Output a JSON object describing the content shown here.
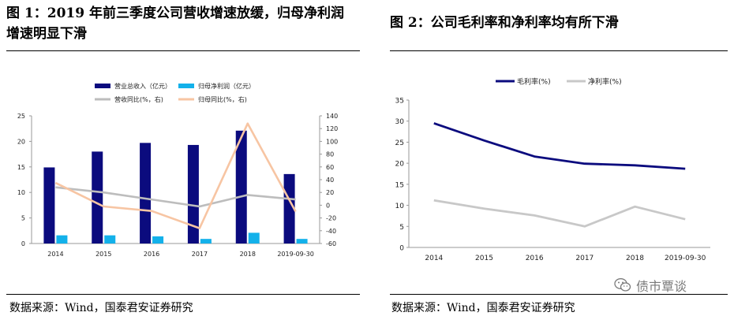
{
  "left_title": "图 1：2019 年前三季度公司营收增速放缓，归母净利润增速明显下滑",
  "right_title": "图 2：公司毛利率和净利率均有所下滑",
  "left_source": "数据来源：Wind，国泰君安证券研究",
  "right_source": "数据来源：Wind，国泰君安证券研究",
  "watermark": {
    "icon": "wechat-icon",
    "text": "债市覃谈"
  },
  "chart_data": [
    {
      "type": "bar",
      "categories": [
        "2014",
        "2015",
        "2016",
        "2017",
        "2018",
        "2019-09-30"
      ],
      "ylim": [
        0,
        25
      ],
      "yticks": [
        0,
        5,
        10,
        15,
        20,
        25
      ],
      "y2lim": [
        -60,
        140
      ],
      "y2ticks": [
        -60,
        -40,
        -20,
        0,
        20,
        40,
        60,
        80,
        100,
        120,
        140
      ],
      "legend": "top",
      "grid": false,
      "series": [
        {
          "name": "营业总收入（亿元）",
          "kind": "bar",
          "axis": "left",
          "color": "#0b0b7e",
          "values": [
            14.9,
            18.0,
            19.7,
            19.3,
            22.1,
            13.6
          ]
        },
        {
          "name": "归母净利润（亿元）",
          "kind": "bar",
          "axis": "left",
          "color": "#13b1ea",
          "values": [
            1.6,
            1.6,
            1.4,
            0.9,
            2.1,
            0.9
          ]
        },
        {
          "name": "营收同比(%，右)",
          "kind": "line",
          "axis": "right",
          "color": "#bdbdbd",
          "values": [
            28,
            20,
            9,
            -2,
            16,
            9
          ]
        },
        {
          "name": "归母同比(%，右)",
          "kind": "line",
          "axis": "right",
          "color": "#f7c5a3",
          "values": [
            35,
            -2,
            -9,
            -36,
            128,
            -10
          ]
        }
      ]
    },
    {
      "type": "line",
      "categories": [
        "2014",
        "2015",
        "2016",
        "2017",
        "2018",
        "2019-09-30"
      ],
      "ylim": [
        0,
        35
      ],
      "yticks": [
        0,
        5,
        10,
        15,
        20,
        25,
        30,
        35
      ],
      "legend": "top",
      "grid": false,
      "series": [
        {
          "name": "毛利率(%)",
          "color": "#0b0b7e",
          "values": [
            29.5,
            25.4,
            21.6,
            19.9,
            19.5,
            18.7
          ]
        },
        {
          "name": "净利率(%)",
          "color": "#c8c8c8",
          "values": [
            11.2,
            9.2,
            7.6,
            5.0,
            9.7,
            6.7
          ]
        }
      ]
    }
  ]
}
